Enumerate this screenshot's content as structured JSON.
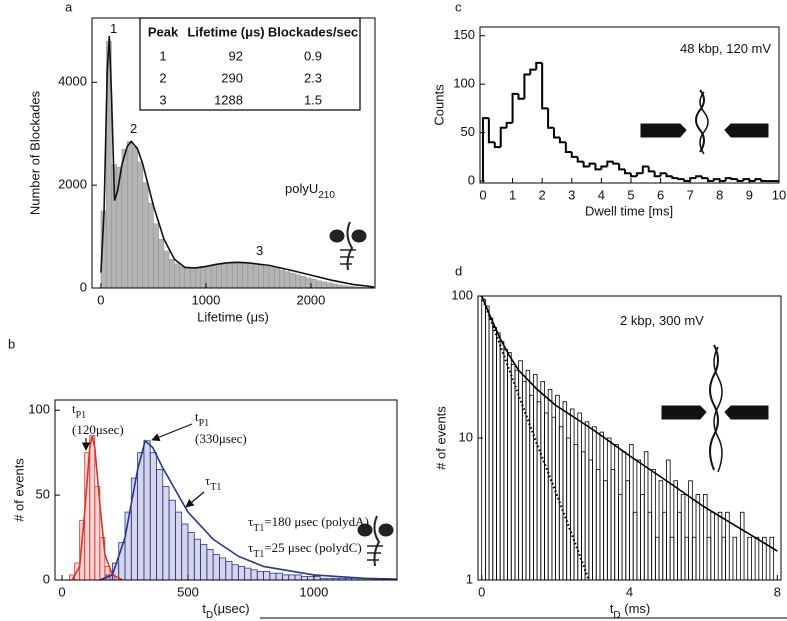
{
  "chart_data": [
    {
      "panel": "a",
      "type": "histogram",
      "x_label": "Lifetime (μs)",
      "y_label": "Number of Blockades",
      "xlim": [
        -85,
        2610
      ],
      "ylim": [
        0,
        5250
      ],
      "xticks": [
        0,
        1000,
        2000
      ],
      "yticks": [
        0,
        2000,
        4000
      ],
      "log_y": false,
      "histograms": [
        {
          "style": "filled",
          "color": "#b4b4b4",
          "bins": [
            0,
            50,
            100,
            150,
            200,
            250,
            300,
            350,
            400,
            450,
            500,
            550,
            600,
            650,
            700,
            750,
            800,
            850,
            900,
            950,
            1000,
            1050,
            1100,
            1150,
            1200,
            1250,
            1300,
            1350,
            1400,
            1450,
            1500,
            1550,
            1600,
            1650,
            1700,
            1750,
            1800,
            1850,
            1900,
            1950,
            2000,
            2050,
            2100,
            2150,
            2200,
            2250,
            2300,
            2350,
            2400,
            2450,
            2500,
            2550,
            2600
          ],
          "values": [
            1500,
            4800,
            2400,
            2350,
            2700,
            2850,
            2750,
            2450,
            2050,
            1650,
            1250,
            950,
            720,
            560,
            470,
            420,
            390,
            390,
            400,
            420,
            430,
            440,
            460,
            470,
            480,
            480,
            490,
            480,
            470,
            460,
            440,
            420,
            400,
            380,
            350,
            320,
            290,
            260,
            230,
            200,
            170,
            140,
            120,
            100,
            80,
            60,
            45,
            35,
            25,
            15,
            10,
            5
          ]
        }
      ],
      "lines": [
        {
          "color": "#111111",
          "style": "solid",
          "x": [
            0,
            30,
            60,
            80,
            100,
            130,
            160,
            200,
            250,
            290,
            350,
            400,
            500,
            600,
            700,
            800,
            900,
            1000,
            1100,
            1200,
            1300,
            1400,
            1600,
            1800,
            2000,
            2200,
            2400,
            2600
          ],
          "values": [
            300,
            1500,
            4200,
            4900,
            3800,
            1700,
            1900,
            2400,
            2750,
            2850,
            2700,
            2400,
            1600,
            950,
            560,
            400,
            390,
            420,
            460,
            490,
            500,
            490,
            440,
            350,
            250,
            150,
            70,
            20
          ]
        }
      ],
      "annotations": [
        {
          "text": "1"
        },
        {
          "text": "2"
        },
        {
          "text": "3"
        },
        {
          "text": "polyU",
          "sub": "210"
        }
      ],
      "table": {
        "columns": [
          "Peak",
          "Lifetime (μs)",
          "Blockades/sec"
        ],
        "rows": [
          [
            1,
            92,
            0.9
          ],
          [
            2,
            290,
            2.3
          ],
          [
            3,
            1288,
            1.5
          ]
        ]
      }
    },
    {
      "panel": "b",
      "type": "histogram",
      "x_label": {
        "text": "t",
        "sub": "D",
        "tail": "(μsec)"
      },
      "y_label": "# of events",
      "xlim": [
        -28,
        1330
      ],
      "ylim": [
        0,
        106
      ],
      "xticks": [
        0,
        500,
        1000
      ],
      "yticks": [
        0,
        50,
        100
      ],
      "log_y": false,
      "histograms": [
        {
          "style": "hatched",
          "color": "#d9342b",
          "bins": [
            30,
            50,
            70,
            90,
            110,
            130,
            150,
            170,
            190,
            210
          ],
          "values": [
            3,
            10,
            35,
            75,
            85,
            55,
            25,
            8,
            3
          ]
        },
        {
          "style": "hatched",
          "color": "#2b3590",
          "bins": [
            175,
            200,
            225,
            250,
            275,
            300,
            325,
            350,
            375,
            400,
            425,
            450,
            475,
            500,
            525,
            550,
            575,
            600,
            625,
            650,
            675,
            700,
            725,
            750,
            775,
            800,
            825,
            850,
            875,
            900,
            925,
            950,
            975,
            1000,
            1025,
            1050,
            1075,
            1100,
            1125,
            1150,
            1175,
            1200,
            1225,
            1250,
            1275,
            1300,
            1325
          ],
          "values": [
            3,
            10,
            22,
            40,
            60,
            75,
            82,
            75,
            65,
            55,
            47,
            40,
            33,
            28,
            24,
            21,
            18,
            15,
            13,
            11,
            9,
            8,
            7,
            6,
            5,
            5,
            4,
            4,
            3,
            3,
            3,
            2,
            2,
            2,
            1,
            1,
            1,
            1,
            1,
            1,
            1,
            0,
            1,
            0,
            0,
            0
          ]
        }
      ],
      "lines": [
        {
          "color": "#d9342b",
          "style": "solid",
          "x": [
            40,
            70,
            90,
            110,
            120,
            130,
            150,
            170,
            200,
            240
          ],
          "values": [
            0,
            8,
            40,
            78,
            85,
            78,
            45,
            15,
            3,
            0
          ]
        },
        {
          "color": "#2b3590",
          "style": "solid",
          "x": [
            150,
            200,
            250,
            300,
            330,
            360,
            400,
            500,
            600,
            700,
            800,
            1000,
            1200,
            1330
          ],
          "values": [
            0,
            3,
            25,
            65,
            82,
            78,
            66,
            40,
            24,
            14,
            8,
            3,
            1,
            0.5
          ]
        }
      ],
      "annotations": [
        {
          "text": "t",
          "sub": "P1",
          "color": "#d9342b"
        },
        {
          "text": "(120μsec)",
          "color": "#d9342b"
        },
        {
          "text": "t",
          "sub": "P1",
          "color": "#2b3590"
        },
        {
          "text": "(330μsec)",
          "color": "#2b3590"
        },
        {
          "text": "τ",
          "sub": "T1",
          "color": "#2b3590"
        },
        {
          "text": "τ",
          "sub": "T1",
          "tail": "=180 μsec (polydA)",
          "color": "#2b3590"
        },
        {
          "text": "τ",
          "sub": "T1",
          "tail": "=25 μsec (polydC)",
          "color": "#d9342b"
        }
      ]
    },
    {
      "panel": "c",
      "type": "histogram",
      "x_label": "Dwell time [ms]",
      "y_label": "Counts",
      "xlim": [
        -0.1,
        10
      ],
      "ylim": [
        -2,
        159
      ],
      "xticks": [
        0,
        1,
        2,
        3,
        4,
        5,
        6,
        7,
        8,
        9,
        10
      ],
      "yticks": [
        0,
        50,
        100,
        150
      ],
      "log_y": false,
      "histograms": [
        {
          "style": "step",
          "color": "#000000",
          "bins": [
            0,
            0.2,
            0.4,
            0.6,
            0.8,
            1,
            1.2,
            1.4,
            1.6,
            1.8,
            2,
            2.2,
            2.4,
            2.6,
            2.8,
            3,
            3.2,
            3.4,
            3.6,
            3.8,
            4,
            4.2,
            4.4,
            4.6,
            4.8,
            5,
            5.2,
            5.4,
            5.6,
            5.8,
            6,
            6.2,
            6.4,
            6.6,
            6.8,
            7,
            7.2,
            7.4,
            7.6,
            7.8,
            8,
            8.2,
            8.4,
            8.6,
            8.8,
            9,
            9.2,
            9.4,
            9.6,
            9.8,
            10
          ],
          "values": [
            65,
            40,
            35,
            55,
            60,
            90,
            85,
            110,
            115,
            122,
            75,
            55,
            45,
            40,
            30,
            25,
            20,
            15,
            18,
            12,
            15,
            20,
            18,
            12,
            8,
            5,
            8,
            15,
            10,
            5,
            8,
            5,
            3,
            2,
            0,
            3,
            5,
            3,
            0,
            2,
            0,
            3,
            2,
            0,
            2,
            0,
            2,
            0,
            0,
            0
          ]
        }
      ],
      "lines": [],
      "annotations": [
        {
          "text": "48 kbp, 120 mV"
        }
      ]
    },
    {
      "panel": "d",
      "type": "histogram",
      "x_label": {
        "text": "t",
        "sub": "D",
        "tail": " (ms)"
      },
      "y_label": "# of events",
      "xlim": [
        -0.1,
        8.1
      ],
      "ylim": [
        1,
        100
      ],
      "xticks": [
        0,
        4,
        8
      ],
      "yticks": [
        1,
        10,
        100
      ],
      "log_y": true,
      "histograms": [
        {
          "style": "bars",
          "color": "#000000",
          "bins": [
            0,
            0.1,
            0.2,
            0.3,
            0.4,
            0.5,
            0.6,
            0.7,
            0.8,
            0.9,
            1,
            1.1,
            1.2,
            1.3,
            1.4,
            1.5,
            1.6,
            1.7,
            1.8,
            1.9,
            2,
            2.1,
            2.2,
            2.3,
            2.4,
            2.5,
            2.6,
            2.7,
            2.8,
            2.9,
            3,
            3.1,
            3.2,
            3.3,
            3.4,
            3.5,
            3.6,
            3.7,
            3.8,
            3.9,
            4,
            4.1,
            4.2,
            4.3,
            4.4,
            4.5,
            4.6,
            4.7,
            4.8,
            4.9,
            5,
            5.1,
            5.2,
            5.3,
            5.4,
            5.5,
            5.6,
            5.7,
            5.8,
            5.9,
            6,
            6.1,
            6.2,
            6.3,
            6.4,
            6.5,
            6.6,
            6.7,
            6.8,
            6.9,
            7,
            7.1,
            7.2,
            7.3,
            7.4,
            7.5,
            7.6,
            7.7,
            7.8,
            7.9,
            8
          ],
          "values": [
            95,
            85,
            70,
            60,
            55,
            48,
            42,
            40,
            33,
            30,
            35,
            25,
            30,
            20,
            28,
            18,
            25,
            15,
            22,
            14,
            20,
            12,
            18,
            10,
            16,
            9,
            15,
            8,
            13,
            7,
            12,
            6,
            11,
            5,
            10,
            6,
            9,
            4,
            8,
            5,
            9,
            3,
            7,
            4,
            8,
            3,
            6,
            2,
            5,
            3,
            7,
            2,
            5,
            3,
            4,
            2,
            5,
            2,
            4,
            1,
            4,
            2,
            3,
            1,
            3,
            2,
            3,
            1,
            2,
            1,
            3,
            1,
            2,
            1,
            2,
            1,
            2,
            1,
            2,
            1
          ]
        }
      ],
      "lines": [
        {
          "color": "#000000",
          "style": "solid",
          "x": [
            0,
            0.25,
            0.5,
            0.75,
            1,
            1.5,
            2,
            2.5,
            3,
            4,
            5,
            6,
            7,
            8
          ],
          "values": [
            100,
            70,
            50,
            38,
            30,
            22,
            17,
            14,
            11.5,
            7.5,
            5,
            3.3,
            2.3,
            1.6
          ]
        },
        {
          "color": "#000000",
          "style": "dotted",
          "x": [
            0,
            0.5,
            1,
            1.5,
            2,
            2.5,
            2.9
          ],
          "values": [
            100,
            45,
            20,
            9,
            4.2,
            1.9,
            1
          ]
        }
      ],
      "annotations": [
        {
          "text": "2 kbp, 300 mV"
        }
      ]
    }
  ]
}
